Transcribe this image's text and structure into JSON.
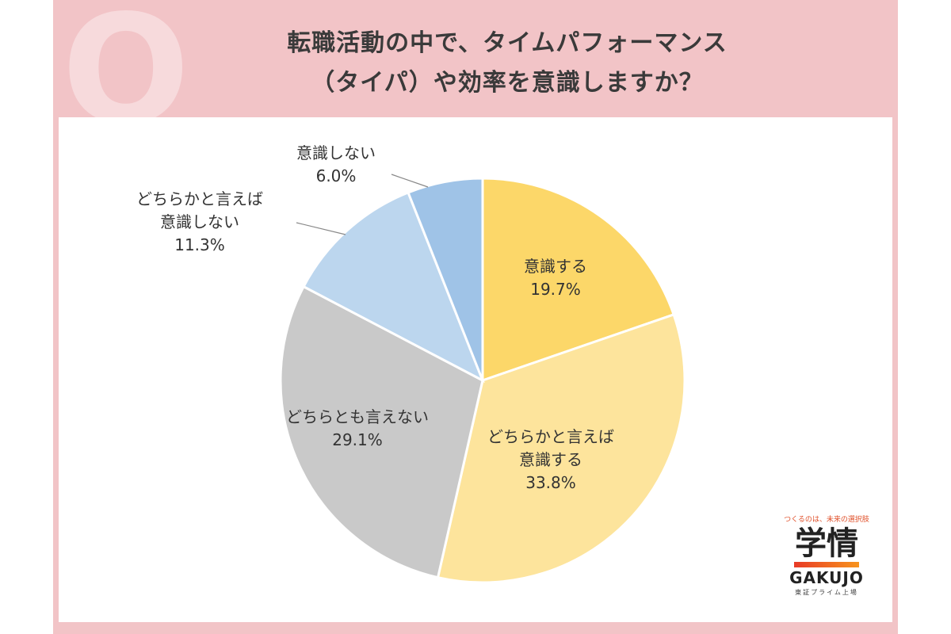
{
  "header": {
    "q_mark": "Q",
    "title_line1": "転職活動の中で、タイムパフォーマンス",
    "title_line2": "（タイパ）や効率を意識しますか？"
  },
  "chart_data": {
    "type": "pie",
    "start_angle_deg": 0,
    "direction": "clockwise",
    "slices": [
      {
        "label": [
          "意識する"
        ],
        "value": 19.7,
        "value_label": "19.7%",
        "color": "#fcd769"
      },
      {
        "label": [
          "どちらかと言えば",
          "意識する"
        ],
        "value": 33.8,
        "value_label": "33.8%",
        "color": "#fde49c"
      },
      {
        "label": [
          "どちらとも言えない"
        ],
        "value": 29.1,
        "value_label": "29.1%",
        "color": "#c9c9c9"
      },
      {
        "label": [
          "どちらかと言えば",
          "意識しない"
        ],
        "value": 11.3,
        "value_label": "11.3%",
        "color": "#bcd6ee"
      },
      {
        "label": [
          "意識しない"
        ],
        "value": 6.0,
        "value_label": "6.0%",
        "color": "#9fc3e7"
      }
    ]
  },
  "logo": {
    "tagline": "つくるのは、未来の選択肢",
    "kanji": "学情",
    "roman": "GAKUJO",
    "sub": "東証プライム上場"
  }
}
